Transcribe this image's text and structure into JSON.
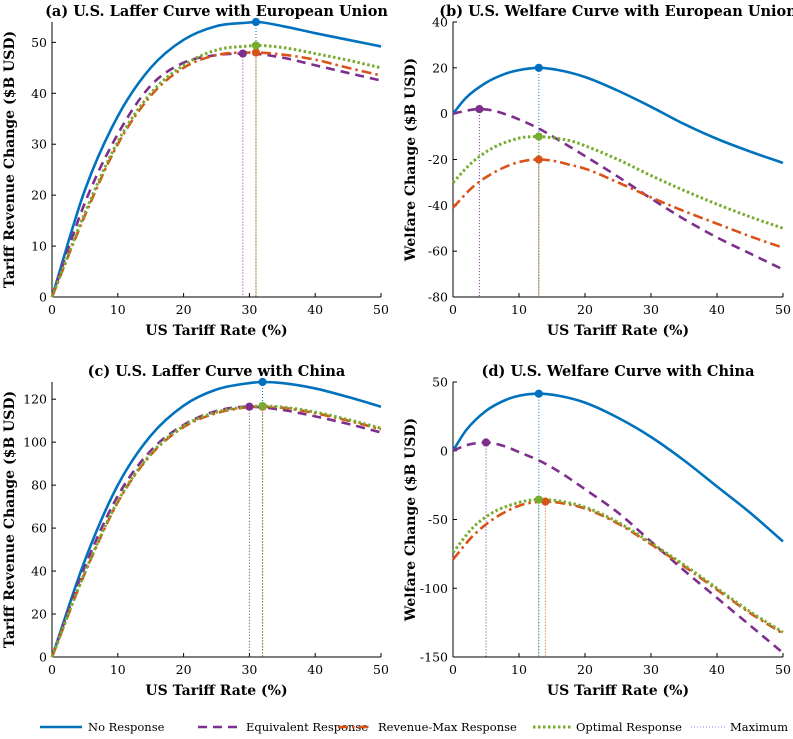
{
  "chart_data": [
    {
      "id": "a",
      "type": "line",
      "title": "(a) U.S. Laffer Curve with European Union",
      "xlabel": "US Tariff Rate (%)",
      "ylabel": "Tariff Revenue Change ($B USD)",
      "xlim": [
        0,
        50
      ],
      "ylim": [
        0,
        54
      ],
      "xticks": [
        0,
        10,
        20,
        30,
        40,
        50
      ],
      "yticks": [
        0,
        10,
        20,
        30,
        40,
        50
      ],
      "series": [
        {
          "name": "No Response",
          "x": [
            0,
            5,
            10,
            15,
            20,
            25,
            30,
            31,
            35,
            40,
            45,
            50
          ],
          "y": [
            0,
            21,
            35.5,
            45,
            50.5,
            53.2,
            53.9,
            54,
            53.2,
            51.8,
            50.5,
            49.2
          ],
          "max": {
            "x": 31,
            "y": 54
          }
        },
        {
          "name": "Equivalent Response",
          "x": [
            0,
            5,
            10,
            15,
            20,
            25,
            29,
            30,
            35,
            40,
            45,
            50
          ],
          "y": [
            0,
            18.5,
            32,
            41.5,
            46,
            47.5,
            47.8,
            47.8,
            47,
            45.5,
            44,
            42.5
          ],
          "max": {
            "x": 29,
            "y": 47.8
          }
        },
        {
          "name": "Revenue-Max Response",
          "x": [
            0,
            5,
            10,
            15,
            20,
            25,
            30,
            31,
            35,
            40,
            45,
            50
          ],
          "y": [
            0,
            16,
            30,
            39.5,
            45,
            47.5,
            48,
            48,
            47.6,
            46.6,
            45,
            43.5
          ],
          "max": {
            "x": 31,
            "y": 48
          }
        },
        {
          "name": "Optimal Response",
          "x": [
            0,
            5,
            10,
            15,
            20,
            25,
            30,
            31,
            35,
            40,
            45,
            50
          ],
          "y": [
            0,
            16.5,
            30.5,
            40,
            45.5,
            48.5,
            49.3,
            49.4,
            49,
            47.8,
            46.5,
            45
          ],
          "max": {
            "x": 31,
            "y": 49.4
          }
        }
      ]
    },
    {
      "id": "b",
      "type": "line",
      "title": "(b) U.S. Welfare Curve with European Union",
      "xlabel": "US Tariff Rate (%)",
      "ylabel": "Welfare Change ($B USD)",
      "xlim": [
        0,
        50
      ],
      "ylim": [
        -80,
        40
      ],
      "xticks": [
        0,
        10,
        20,
        30,
        40,
        50
      ],
      "yticks": [
        -80,
        -60,
        -40,
        -20,
        0,
        20,
        40
      ],
      "series": [
        {
          "name": "No Response",
          "x": [
            0,
            2,
            5,
            8,
            10,
            13,
            16,
            20,
            25,
            30,
            35,
            40,
            45,
            50
          ],
          "y": [
            0,
            7,
            13.5,
            17.5,
            19,
            20,
            19,
            16,
            10,
            3,
            -4.5,
            -11,
            -16.5,
            -21.5
          ],
          "max": {
            "x": 13,
            "y": 20
          }
        },
        {
          "name": "Equivalent Response",
          "x": [
            0,
            2,
            4,
            6,
            8,
            10,
            13,
            16,
            20,
            25,
            30,
            35,
            40,
            45,
            50
          ],
          "y": [
            0,
            1.3,
            2,
            1.4,
            -0.3,
            -2.5,
            -6.5,
            -11.5,
            -18.5,
            -27.5,
            -37,
            -46,
            -54,
            -61,
            -68
          ],
          "max": {
            "x": 4,
            "y": 2
          }
        },
        {
          "name": "Revenue-Max Response",
          "x": [
            0,
            3,
            6,
            9,
            11,
            13,
            15,
            18,
            20,
            25,
            30,
            35,
            40,
            45,
            50
          ],
          "y": [
            -41,
            -32,
            -26,
            -22,
            -20.5,
            -20,
            -20.5,
            -22.5,
            -24,
            -30,
            -36.5,
            -42.5,
            -48,
            -53.5,
            -58.5
          ],
          "max": {
            "x": 13,
            "y": -20
          }
        },
        {
          "name": "Optimal Response",
          "x": [
            0,
            3,
            6,
            9,
            11,
            13,
            15,
            18,
            20,
            25,
            30,
            35,
            40,
            45,
            50
          ],
          "y": [
            -30,
            -21,
            -15,
            -11.5,
            -10.2,
            -10,
            -10.5,
            -12,
            -14,
            -20,
            -27,
            -33.5,
            -39.5,
            -45,
            -50
          ],
          "max": {
            "x": 13,
            "y": -10
          }
        }
      ]
    },
    {
      "id": "c",
      "type": "line",
      "title": "(c) U.S. Laffer Curve with China",
      "xlabel": "US Tariff Rate (%)",
      "ylabel": "Tariff Revenue Change ($B USD)",
      "xlim": [
        0,
        50
      ],
      "ylim": [
        0,
        128
      ],
      "xticks": [
        0,
        10,
        20,
        30,
        40,
        50
      ],
      "yticks": [
        0,
        20,
        40,
        60,
        80,
        100,
        120
      ],
      "series": [
        {
          "name": "No Response",
          "x": [
            0,
            5,
            10,
            15,
            20,
            25,
            30,
            32,
            35,
            40,
            45,
            50
          ],
          "y": [
            0,
            45,
            80,
            103,
            117,
            124.5,
            127.5,
            128,
            127.5,
            125,
            121,
            116.5
          ],
          "max": {
            "x": 32,
            "y": 128
          }
        },
        {
          "name": "Equivalent Response",
          "x": [
            0,
            5,
            10,
            15,
            20,
            25,
            30,
            35,
            40,
            45,
            50
          ],
          "y": [
            0,
            42,
            75,
            96,
            108,
            114.5,
            116.5,
            115,
            112,
            108.5,
            104.5
          ],
          "max": {
            "x": 30,
            "y": 116.5
          }
        },
        {
          "name": "Revenue-Max Response",
          "x": [
            0,
            5,
            10,
            15,
            20,
            25,
            30,
            32,
            35,
            40,
            45,
            50
          ],
          "y": [
            0,
            39,
            72,
            94,
            107,
            113.5,
            116.3,
            116.5,
            116,
            113.5,
            110,
            106
          ],
          "max": {
            "x": 32,
            "y": 116.5
          }
        },
        {
          "name": "Optimal Response",
          "x": [
            0,
            5,
            10,
            15,
            20,
            25,
            30,
            32,
            35,
            40,
            45,
            50
          ],
          "y": [
            0,
            39.5,
            72.5,
            94.5,
            107.5,
            114,
            116.5,
            116.8,
            116.3,
            114,
            110.5,
            106.5
          ],
          "max": {
            "x": 32,
            "y": 116.8
          }
        }
      ]
    },
    {
      "id": "d",
      "type": "line",
      "title": "(d) U.S. Welfare Curve with China",
      "xlabel": "US Tariff Rate (%)",
      "ylabel": "Welfare Change ($B USD)",
      "xlim": [
        0,
        50
      ],
      "ylim": [
        -150,
        50
      ],
      "xticks": [
        0,
        10,
        20,
        30,
        40,
        50
      ],
      "yticks": [
        -150,
        -100,
        -50,
        0,
        50
      ],
      "series": [
        {
          "name": "No Response",
          "x": [
            0,
            2,
            5,
            8,
            10,
            13,
            16,
            20,
            25,
            30,
            35,
            40,
            45,
            50
          ],
          "y": [
            0,
            15,
            29,
            37,
            40,
            41.5,
            40,
            35,
            24,
            10,
            -7,
            -26,
            -45,
            -66
          ],
          "max": {
            "x": 13,
            "y": 41.5
          }
        },
        {
          "name": "Equivalent Response",
          "x": [
            0,
            2,
            5,
            8,
            10,
            13,
            16,
            20,
            25,
            30,
            35,
            40,
            45,
            50
          ],
          "y": [
            0,
            4,
            6,
            3,
            -1,
            -7,
            -15,
            -28,
            -45,
            -66,
            -87,
            -107,
            -127,
            -147
          ],
          "max": {
            "x": 5,
            "y": 6
          }
        },
        {
          "name": "Revenue-Max Response",
          "x": [
            0,
            3,
            6,
            9,
            11,
            14,
            17,
            20,
            25,
            30,
            35,
            40,
            45,
            50
          ],
          "y": [
            -79,
            -62,
            -50,
            -42,
            -38.5,
            -37,
            -38.5,
            -42,
            -53,
            -68,
            -84,
            -101,
            -118,
            -133
          ],
          "max": {
            "x": 14,
            "y": -37
          }
        },
        {
          "name": "Optimal Response",
          "x": [
            0,
            3,
            6,
            9,
            11,
            13,
            16,
            20,
            25,
            30,
            35,
            40,
            45,
            50
          ],
          "y": [
            -74,
            -56,
            -45,
            -39,
            -36.5,
            -35.5,
            -36.5,
            -41,
            -52,
            -67,
            -83,
            -100,
            -117,
            -132
          ],
          "max": {
            "x": 13,
            "y": -35.5
          }
        }
      ]
    }
  ],
  "legend": [
    {
      "label": "No Response",
      "color": "#0072BD",
      "dash": "solid"
    },
    {
      "label": "Equivalent Response",
      "color": "#7E2F8E",
      "dash": "dash"
    },
    {
      "label": "Revenue-Max Response",
      "color": "#D95319",
      "dash": "dashdot"
    },
    {
      "label": "Optimal Response",
      "color": "#77AC30",
      "dash": "dot"
    },
    {
      "label": "Maximum",
      "color": "#8080ff",
      "dash": "thin-dot"
    }
  ],
  "colors": {
    "No Response": "#0072BD",
    "Equivalent Response": "#7E2F8E",
    "Revenue-Max Response": "#D95319",
    "Optimal Response": "#77AC30"
  }
}
